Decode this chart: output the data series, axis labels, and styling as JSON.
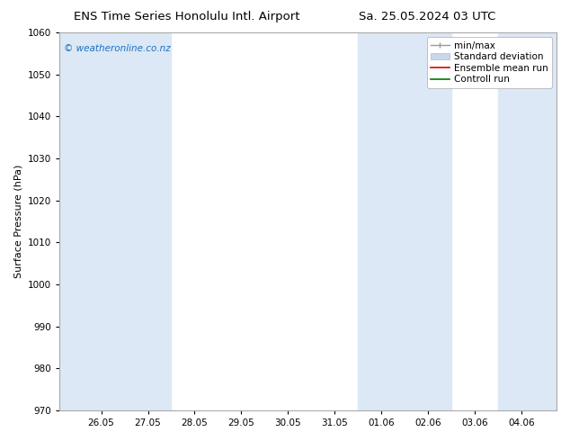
{
  "title_left": "ENS Time Series Honolulu Intl. Airport",
  "title_right": "Sa. 25.05.2024 03 UTC",
  "ylabel": "Surface Pressure (hPa)",
  "ylim": [
    970,
    1060
  ],
  "yticks": [
    970,
    980,
    990,
    1000,
    1010,
    1020,
    1030,
    1040,
    1050,
    1060
  ],
  "xtick_labels": [
    "26.05",
    "27.05",
    "28.05",
    "29.05",
    "30.05",
    "31.05",
    "01.06",
    "02.06",
    "03.06",
    "04.06"
  ],
  "watermark": "© weatheronline.co.nz",
  "watermark_color": "#1a6fc4",
  "bg_color": "#ffffff",
  "plot_bg_color": "#ffffff",
  "shaded_color": "#dce8f5",
  "legend_items": [
    {
      "label": "min/max"
    },
    {
      "label": "Standard deviation"
    },
    {
      "label": "Ensemble mean run"
    },
    {
      "label": "Controll run"
    }
  ],
  "title_fontsize": 9.5,
  "tick_fontsize": 7.5,
  "ylabel_fontsize": 8,
  "watermark_fontsize": 7.5,
  "legend_fontsize": 7.5
}
